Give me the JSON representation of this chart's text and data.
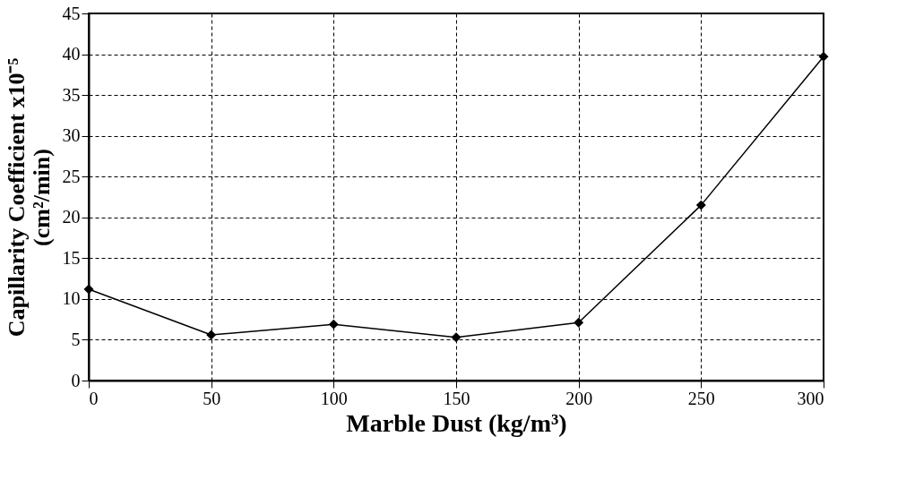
{
  "chart_data": {
    "type": "line",
    "xlabel": "Marble Dust (kg/m³)",
    "ylabel": "Capillarity Coefficient x10⁻⁵\n(cm²/min)",
    "x": [
      0,
      50,
      100,
      150,
      200,
      250,
      300
    ],
    "series": [
      {
        "color": "#000000",
        "values": [
          11.2,
          5.6,
          6.9,
          5.3,
          7.1,
          21.5,
          39.7
        ]
      }
    ],
    "xlim": [
      0,
      300
    ],
    "xticks": [
      0,
      50,
      100,
      150,
      200,
      250,
      300
    ],
    "ylim": [
      0,
      45
    ],
    "yticks": [
      0,
      5,
      10,
      15,
      20,
      25,
      30,
      35,
      40,
      45
    ],
    "grid": true,
    "marker": "diamond",
    "line_style": "solid",
    "legend": false
  }
}
